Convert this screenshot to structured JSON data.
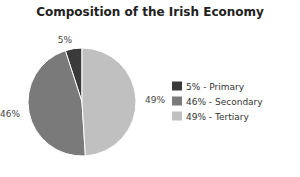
{
  "chart_data": {
    "type": "pie",
    "title": "Composition of the Irish Economy",
    "categories": [
      "5% - Primary",
      "46% - Secondary",
      "49% - Tertiary"
    ],
    "values": [
      5,
      46,
      49
    ],
    "value_labels": [
      "5%",
      "46%",
      "49%"
    ],
    "data_labels": true,
    "colors": [
      "#3a3a3a",
      "#7a7a7a",
      "#c0c0c0"
    ],
    "legend": "right"
  }
}
